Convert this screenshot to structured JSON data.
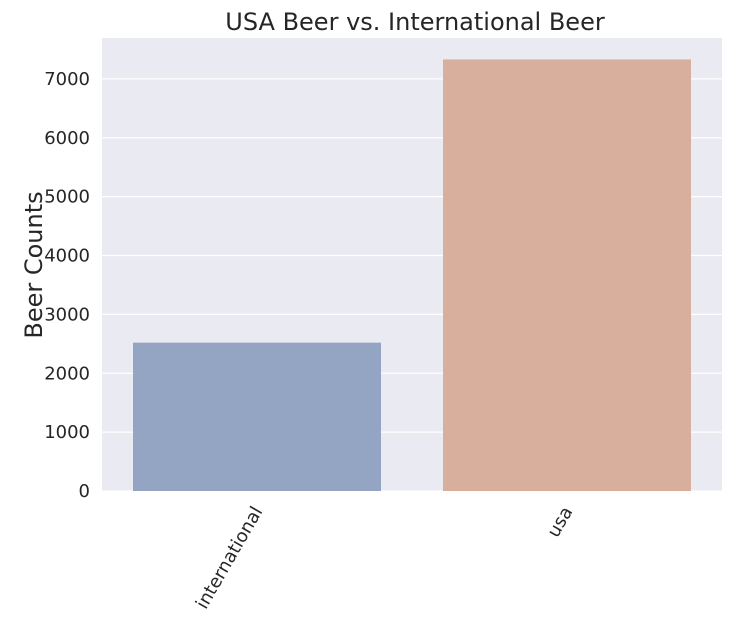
{
  "chart_data": {
    "type": "bar",
    "title": "USA Beer vs. International Beer",
    "xlabel": "",
    "ylabel": "Beer Counts",
    "categories": [
      "international",
      "usa"
    ],
    "values": [
      2520,
      7330
    ],
    "ylim": [
      0,
      7700
    ],
    "yticks": [
      0,
      1000,
      2000,
      3000,
      4000,
      5000,
      6000,
      7000
    ],
    "ytick_labels": [
      "0",
      "1000",
      "2000",
      "3000",
      "4000",
      "5000",
      "6000",
      "7000"
    ],
    "xtick_rotation_deg": 60,
    "grid": true,
    "colors": {
      "plot_background": "#eaeaf2",
      "grid": "#ffffff",
      "bars": [
        "#94a5c4",
        "#d8af9c"
      ]
    }
  }
}
